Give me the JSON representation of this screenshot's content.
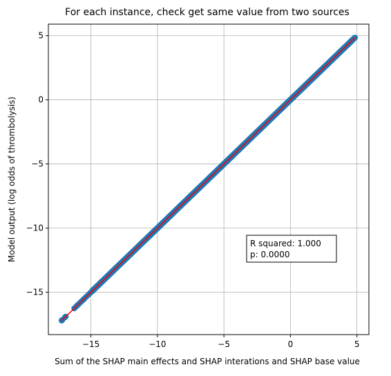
{
  "chart_data": {
    "type": "scatter",
    "title": "For each instance, check get same value from two sources",
    "xlabel": "Sum of the SHAP main effects and SHAP interations and SHAP base value",
    "ylabel": "Model output (log odds of thrombolysis)",
    "xlim": [
      -18.2,
      5.9
    ],
    "ylim": [
      -18.3,
      5.9
    ],
    "x_ticks": [
      -15,
      -10,
      -5,
      0,
      5
    ],
    "y_ticks": [
      -15,
      -10,
      -5,
      0,
      5
    ],
    "x_tick_labels": [
      "−15",
      "−10",
      "−5",
      "0",
      "5"
    ],
    "y_tick_labels": [
      "−15",
      "−10",
      "−5",
      "0",
      "5"
    ],
    "grid": true,
    "series": [
      {
        "color": "#1f77b4",
        "points": [
          [
            -17.2,
            -17.2
          ],
          [
            -17.15,
            -17.15
          ],
          [
            -16.95,
            -16.95
          ],
          [
            -16.9,
            -16.9
          ],
          [
            -16.25,
            -16.25
          ],
          [
            -16.1,
            -16.1
          ],
          [
            -16.0,
            -16.0
          ],
          [
            -15.9,
            -15.9
          ],
          [
            -15.75,
            -15.75
          ],
          [
            -15.6,
            -15.6
          ],
          [
            -15.5,
            -15.5
          ],
          [
            -15.35,
            -15.35
          ],
          [
            -15.2,
            -15.2
          ],
          [
            -15.05,
            -15.05
          ],
          [
            -14.9,
            -14.9
          ],
          [
            4.7,
            4.7
          ],
          [
            4.8,
            4.8
          ],
          [
            4.85,
            4.85
          ]
        ],
        "dense_ranges": [
          [
            -14.9,
            4.7
          ]
        ]
      }
    ],
    "fit_line": {
      "color": "#ff0000",
      "x": [
        -17.2,
        4.85
      ],
      "y": [
        -17.2,
        4.85
      ]
    },
    "annotation": {
      "line1": "R squared: 1.000",
      "line2": "p: 0.0000"
    }
  }
}
